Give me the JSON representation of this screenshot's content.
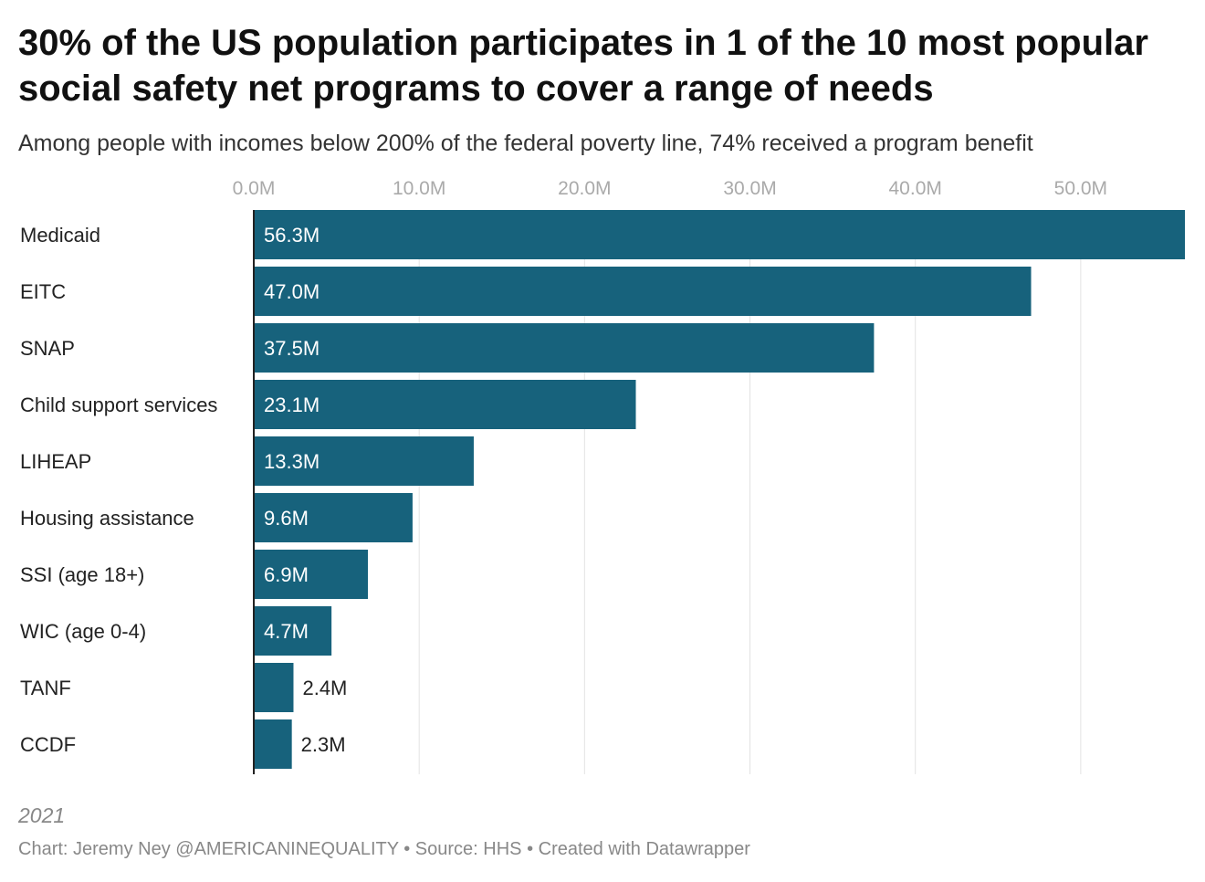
{
  "header": {
    "title": "30% of the US population participates in 1 of the 10 most popular social safety net programs to cover a range of needs",
    "subtitle": "Among people with incomes below 200% of the federal poverty line, 74% received a program benefit"
  },
  "footer": {
    "note": "2021",
    "credits": "Chart: Jeremy Ney @AMERICANINEQUALITY • Source: HHS • Created with Datawrapper"
  },
  "colors": {
    "bar": "#17627c",
    "gridline": "#e3e3e3",
    "axis": "#222222"
  },
  "chart_data": {
    "type": "bar",
    "orientation": "horizontal",
    "categories": [
      "Medicaid",
      "EITC",
      "SNAP",
      "Child support services",
      "LIHEAP",
      "Housing assistance",
      "SSI (age 18+)",
      "WIC (age 0-4)",
      "TANF",
      "CCDF"
    ],
    "values": [
      56.3,
      47.0,
      37.5,
      23.1,
      13.3,
      9.6,
      6.9,
      4.7,
      2.4,
      2.3
    ],
    "value_labels": [
      "56.3M",
      "47.0M",
      "37.5M",
      "23.1M",
      "13.3M",
      "9.6M",
      "6.9M",
      "4.7M",
      "2.4M",
      "2.3M"
    ],
    "x_ticks": [
      0,
      10,
      20,
      30,
      40,
      50
    ],
    "x_tick_labels": [
      "0.0M",
      "10.0M",
      "20.0M",
      "30.0M",
      "40.0M",
      "50.0M"
    ],
    "xlim": [
      0,
      56.3
    ],
    "x_axis_position": "top",
    "grid": true,
    "legend": "none"
  }
}
